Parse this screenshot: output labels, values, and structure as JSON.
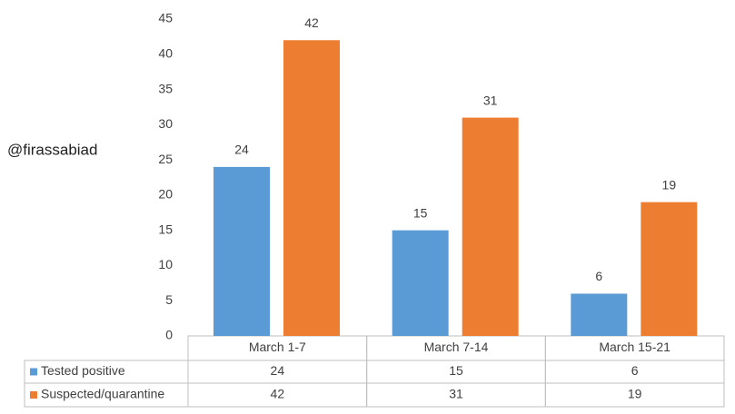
{
  "chart_data": {
    "type": "bar",
    "annotation": "@firassabiad",
    "categories": [
      "March 1-7",
      "March 7-14",
      "March 15-21"
    ],
    "series": [
      {
        "name": "Tested positive",
        "color": "#5b9bd5",
        "values": [
          24,
          15,
          6
        ]
      },
      {
        "name": "Suspected/quarantine",
        "color": "#ed7d31",
        "values": [
          42,
          31,
          19
        ]
      }
    ],
    "ylim": [
      0,
      45
    ],
    "yticks": [
      0,
      5,
      10,
      15,
      20,
      25,
      30,
      35,
      40,
      45
    ],
    "grid": false,
    "data_labels": true,
    "data_table": true
  }
}
